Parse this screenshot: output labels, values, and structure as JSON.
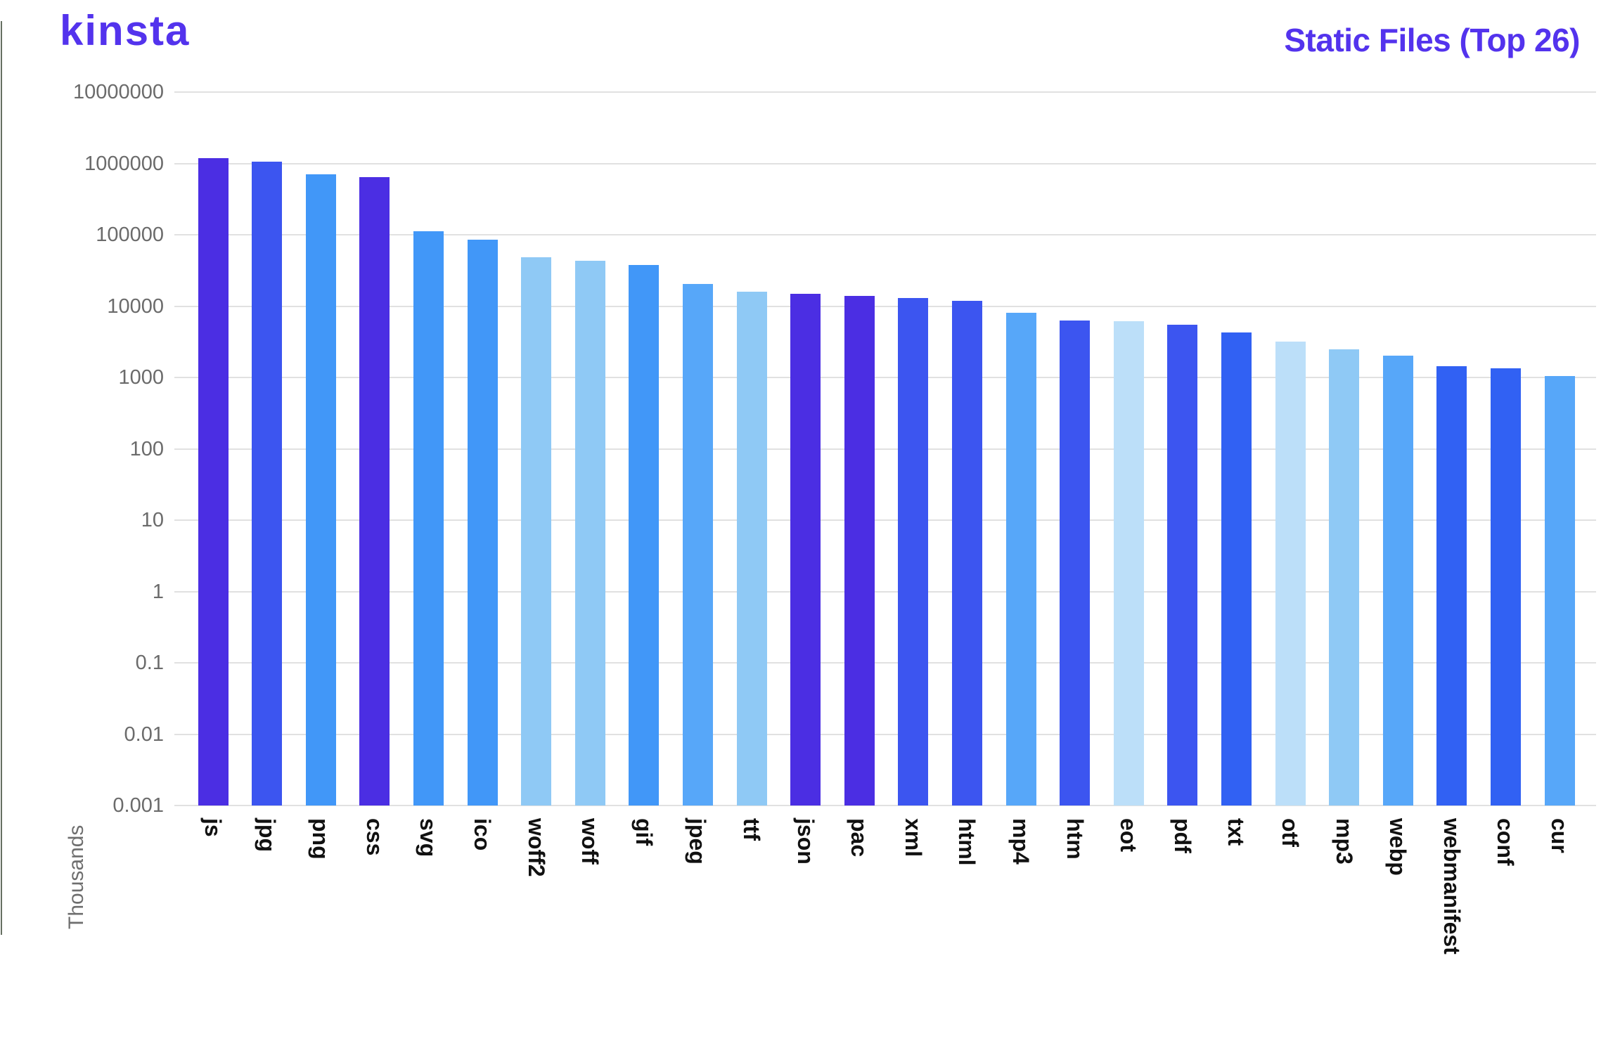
{
  "brand": {
    "logo_text": "kinsta",
    "logo_color": "#5333ED"
  },
  "header": {
    "title": "Static Files (Top 26)",
    "title_color": "#5333ED"
  },
  "axis": {
    "unit_label": "Thousands",
    "tick_color": "#6b6b6b",
    "grid_color": "#e1e1e1",
    "label_color": "#111111"
  },
  "chart_data": {
    "type": "bar",
    "title": "Static Files (Top 26)",
    "xlabel": "",
    "ylabel": "Thousands",
    "yscale": "log",
    "ylim": [
      0.001,
      10000000
    ],
    "grid": true,
    "legend": false,
    "y_ticks": [
      "10000000",
      "1000000",
      "100000",
      "10000",
      "1000",
      "100",
      "10",
      "1",
      "0.1",
      "0.01",
      "0.001"
    ],
    "categories": [
      "js",
      "jpg",
      "png",
      "css",
      "svg",
      "ico",
      "woff2",
      "woff",
      "gif",
      "jpeg",
      "ttf",
      "json",
      "pac",
      "xml",
      "html",
      "mp4",
      "htm",
      "eot",
      "pdf",
      "txt",
      "otf",
      "mp3",
      "webp",
      "webmanifest",
      "conf",
      "cur"
    ],
    "values": [
      1200000,
      1050000,
      700000,
      650000,
      113000,
      85000,
      48000,
      43000,
      38000,
      20500,
      16000,
      14800,
      14000,
      13000,
      12000,
      8000,
      6300,
      6200,
      5500,
      4300,
      3200,
      2500,
      2000,
      1450,
      1350,
      1050
    ],
    "bar_colors": [
      "#4B2EE3",
      "#3C55F0",
      "#4197F8",
      "#4B2EE3",
      "#4197F8",
      "#4197F8",
      "#8FC9F5",
      "#8FC9F5",
      "#4197F8",
      "#57A7F9",
      "#8FC9F5",
      "#4B2EE3",
      "#4B2EE3",
      "#3C55F0",
      "#3C55F0",
      "#57A7F9",
      "#3C55F0",
      "#BCDFF9",
      "#3C55F0",
      "#3161F3",
      "#BCDFF9",
      "#8FC9F5",
      "#57A7F9",
      "#3161F3",
      "#3161F3",
      "#57A7F9"
    ]
  }
}
